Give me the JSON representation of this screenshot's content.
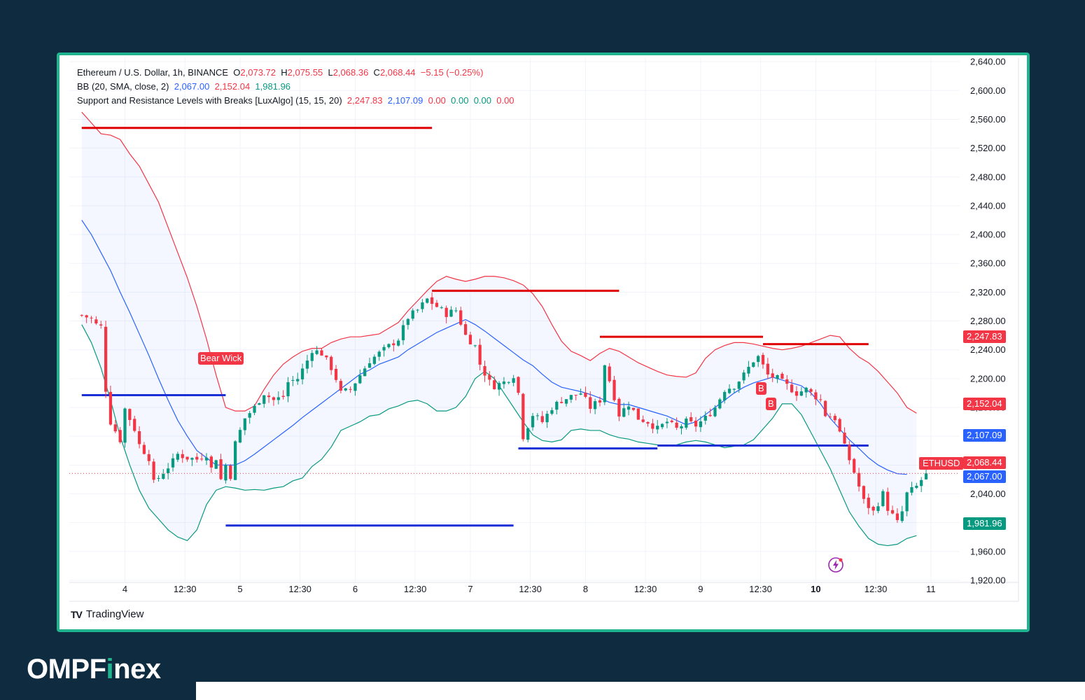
{
  "header": {
    "symbol_line": "Ethereum / U.S. Dollar, 1h, BINANCE",
    "ohlc": {
      "o_label": "O",
      "o": "2,073.72",
      "h_label": "H",
      "h": "2,075.55",
      "l_label": "L",
      "l": "2,068.36",
      "c_label": "C",
      "c": "2,068.44",
      "change": "−5.15 (−0.25%)"
    },
    "bb_title": "BB (20, SMA, close, 2)",
    "bb_values": {
      "basis": "2,067.00",
      "upper": "2,152.04",
      "lower": "1,981.96"
    },
    "sr_title": "Support and Resistance Levels with Breaks [LuxAlgo] (15, 15, 20)",
    "sr_values": {
      "res": "2,247.83",
      "sup": "2,107.09",
      "v1": "0.00",
      "v2": "0.00",
      "v3": "0.00",
      "v4": "0.00"
    }
  },
  "price_tags": {
    "res": {
      "label": "2,247.83",
      "color": "#f23645"
    },
    "bb_upper": {
      "label": "2,152.04",
      "color": "#f23645"
    },
    "sup": {
      "label": "2,107.09",
      "color": "#2962ff"
    },
    "last": {
      "label": "2,068.44",
      "color": "#f23645",
      "symbol": "ETHUSD"
    },
    "basis": {
      "label": "2,067.00",
      "color": "#2962ff"
    },
    "bb_lower": {
      "label": "1,981.96",
      "color": "#089981"
    }
  },
  "annotations": {
    "bear_wick": "Bear Wick",
    "break_1": "B",
    "break_2": "B"
  },
  "footer": {
    "tv_mark": "TV",
    "tv_name": "TradingView"
  },
  "brand": {
    "pre": "OMPF",
    "i": "i",
    "post": "nex"
  },
  "colors": {
    "up": "#089981",
    "down": "#f23645",
    "basis": "#2962ff",
    "bb_upper": "#f23645",
    "bb_lower": "#089981",
    "band_fill": "#2962ff",
    "frame": "#1fb48e",
    "background": "#0e2b40"
  },
  "chart_data": {
    "type": "candlestick",
    "y_axis": {
      "ticks": [
        1920,
        1960,
        2000,
        2040,
        2080,
        2120,
        2160,
        2200,
        2240,
        2280,
        2320,
        2360,
        2400,
        2440,
        2480,
        2520,
        2560,
        2600,
        2640
      ],
      "range": [
        1918,
        2645
      ]
    },
    "x_axis": {
      "ticks": [
        {
          "label": "4",
          "t": 9
        },
        {
          "label": "12:30",
          "t": 21.5
        },
        {
          "label": "5",
          "t": 33
        },
        {
          "label": "12:30",
          "t": 45.5
        },
        {
          "label": "6",
          "t": 57
        },
        {
          "label": "12:30",
          "t": 69.5
        },
        {
          "label": "7",
          "t": 81
        },
        {
          "label": "12:30",
          "t": 93.5
        },
        {
          "label": "8",
          "t": 105
        },
        {
          "label": "12:30",
          "t": 117.5
        },
        {
          "label": "9",
          "t": 129
        },
        {
          "label": "12:30",
          "t": 141.5
        },
        {
          "label": "10",
          "t": 153,
          "bold": true
        },
        {
          "label": "12:30",
          "t": 165.5
        },
        {
          "label": "11",
          "t": 177
        }
      ],
      "range": [
        -2.6,
        183
      ]
    },
    "close_path": [
      [
        0,
        2288
      ],
      [
        2,
        2283
      ],
      [
        3,
        2275
      ],
      [
        4,
        2272
      ],
      [
        5,
        2185
      ],
      [
        6,
        2140
      ],
      [
        8,
        2115
      ],
      [
        9,
        2158
      ],
      [
        11,
        2130
      ],
      [
        12,
        2108
      ],
      [
        14,
        2090
      ],
      [
        15,
        2055
      ],
      [
        17,
        2070
      ],
      [
        19,
        2085
      ],
      [
        20,
        2095
      ],
      [
        22,
        2090
      ],
      [
        24,
        2088
      ],
      [
        26,
        2095
      ],
      [
        27,
        2075
      ],
      [
        28,
        2090
      ],
      [
        29,
        2060
      ],
      [
        30,
        2080
      ],
      [
        31,
        2065
      ],
      [
        32,
        2110
      ],
      [
        34,
        2145
      ],
      [
        36,
        2160
      ],
      [
        38,
        2180
      ],
      [
        40,
        2170
      ],
      [
        42,
        2175
      ],
      [
        43,
        2195
      ],
      [
        45,
        2200
      ],
      [
        47,
        2225
      ],
      [
        48,
        2240
      ],
      [
        50,
        2235
      ],
      [
        52,
        2215
      ],
      [
        53,
        2200
      ],
      [
        54,
        2180
      ],
      [
        56,
        2185
      ],
      [
        58,
        2205
      ],
      [
        60,
        2225
      ],
      [
        62,
        2235
      ],
      [
        64,
        2245
      ],
      [
        66,
        2255
      ],
      [
        68,
        2285
      ],
      [
        70,
        2295
      ],
      [
        72,
        2310
      ],
      [
        74,
        2300
      ],
      [
        76,
        2290
      ],
      [
        78,
        2295
      ],
      [
        80,
        2260
      ],
      [
        82,
        2245
      ],
      [
        83,
        2220
      ],
      [
        85,
        2195
      ],
      [
        86,
        2190
      ],
      [
        88,
        2195
      ],
      [
        90,
        2205
      ],
      [
        91,
        2180
      ],
      [
        92,
        2120
      ],
      [
        94,
        2150
      ],
      [
        96,
        2140
      ],
      [
        98,
        2160
      ],
      [
        100,
        2170
      ],
      [
        102,
        2175
      ],
      [
        104,
        2180
      ],
      [
        106,
        2160
      ],
      [
        108,
        2170
      ],
      [
        109,
        2220
      ],
      [
        111,
        2175
      ],
      [
        112,
        2150
      ],
      [
        114,
        2165
      ],
      [
        116,
        2145
      ],
      [
        118,
        2140
      ],
      [
        120,
        2130
      ],
      [
        122,
        2140
      ],
      [
        124,
        2130
      ],
      [
        126,
        2140
      ],
      [
        128,
        2135
      ],
      [
        130,
        2145
      ],
      [
        132,
        2160
      ],
      [
        134,
        2185
      ],
      [
        136,
        2190
      ],
      [
        138,
        2205
      ],
      [
        140,
        2225
      ],
      [
        141,
        2230
      ],
      [
        143,
        2205
      ],
      [
        145,
        2200
      ],
      [
        147,
        2190
      ],
      [
        149,
        2180
      ],
      [
        151,
        2185
      ],
      [
        153,
        2175
      ],
      [
        154,
        2170
      ],
      [
        155,
        2150
      ],
      [
        157,
        2145
      ],
      [
        159,
        2105
      ],
      [
        161,
        2070
      ],
      [
        163,
        2030
      ],
      [
        165,
        2015
      ],
      [
        167,
        2040
      ],
      [
        168,
        2020
      ],
      [
        170,
        2000
      ],
      [
        171,
        2015
      ],
      [
        172,
        2040
      ],
      [
        174,
        2050
      ],
      [
        176,
        2068.44
      ]
    ],
    "bb_upper_path": [
      [
        0,
        2570
      ],
      [
        2,
        2555
      ],
      [
        4,
        2540
      ],
      [
        6,
        2538
      ],
      [
        8,
        2532
      ],
      [
        10,
        2512
      ],
      [
        12,
        2495
      ],
      [
        14,
        2470
      ],
      [
        16,
        2445
      ],
      [
        18,
        2410
      ],
      [
        20,
        2375
      ],
      [
        22,
        2340
      ],
      [
        24,
        2300
      ],
      [
        26,
        2255
      ],
      [
        28,
        2205
      ],
      [
        30,
        2160
      ],
      [
        32,
        2155
      ],
      [
        34,
        2155
      ],
      [
        36,
        2162
      ],
      [
        38,
        2185
      ],
      [
        40,
        2205
      ],
      [
        42,
        2220
      ],
      [
        44,
        2230
      ],
      [
        46,
        2238
      ],
      [
        48,
        2242
      ],
      [
        50,
        2242
      ],
      [
        52,
        2250
      ],
      [
        54,
        2255
      ],
      [
        56,
        2258
      ],
      [
        58,
        2258
      ],
      [
        60,
        2260
      ],
      [
        62,
        2262
      ],
      [
        64,
        2270
      ],
      [
        66,
        2278
      ],
      [
        68,
        2294
      ],
      [
        70,
        2308
      ],
      [
        72,
        2322
      ],
      [
        74,
        2335
      ],
      [
        76,
        2342
      ],
      [
        78,
        2338
      ],
      [
        80,
        2335
      ],
      [
        82,
        2338
      ],
      [
        84,
        2342
      ],
      [
        86,
        2342
      ],
      [
        88,
        2340
      ],
      [
        90,
        2336
      ],
      [
        92,
        2330
      ],
      [
        94,
        2318
      ],
      [
        96,
        2300
      ],
      [
        98,
        2275
      ],
      [
        100,
        2252
      ],
      [
        102,
        2238
      ],
      [
        104,
        2232
      ],
      [
        106,
        2225
      ],
      [
        108,
        2235
      ],
      [
        110,
        2242
      ],
      [
        112,
        2238
      ],
      [
        114,
        2230
      ],
      [
        116,
        2222
      ],
      [
        118,
        2216
      ],
      [
        120,
        2210
      ],
      [
        122,
        2205
      ],
      [
        124,
        2203
      ],
      [
        126,
        2202
      ],
      [
        128,
        2208
      ],
      [
        130,
        2228
      ],
      [
        132,
        2240
      ],
      [
        134,
        2246
      ],
      [
        136,
        2250
      ],
      [
        138,
        2250
      ],
      [
        140,
        2248
      ],
      [
        142,
        2245
      ],
      [
        144,
        2242
      ],
      [
        146,
        2240
      ],
      [
        148,
        2242
      ],
      [
        150,
        2245
      ],
      [
        152,
        2250
      ],
      [
        154,
        2255
      ],
      [
        156,
        2260
      ],
      [
        158,
        2258
      ],
      [
        160,
        2242
      ],
      [
        162,
        2230
      ],
      [
        164,
        2222
      ],
      [
        166,
        2210
      ],
      [
        168,
        2195
      ],
      [
        170,
        2180
      ],
      [
        172,
        2160
      ],
      [
        174,
        2152
      ]
    ],
    "basis_path": [
      [
        0,
        2420
      ],
      [
        2,
        2400
      ],
      [
        4,
        2375
      ],
      [
        6,
        2350
      ],
      [
        8,
        2320
      ],
      [
        10,
        2292
      ],
      [
        12,
        2262
      ],
      [
        14,
        2232
      ],
      [
        16,
        2200
      ],
      [
        18,
        2170
      ],
      [
        20,
        2142
      ],
      [
        22,
        2120
      ],
      [
        24,
        2100
      ],
      [
        26,
        2090
      ],
      [
        28,
        2080
      ],
      [
        30,
        2080
      ],
      [
        32,
        2080
      ],
      [
        34,
        2086
      ],
      [
        36,
        2095
      ],
      [
        38,
        2105
      ],
      [
        40,
        2115
      ],
      [
        42,
        2125
      ],
      [
        44,
        2135
      ],
      [
        46,
        2146
      ],
      [
        48,
        2156
      ],
      [
        50,
        2166
      ],
      [
        52,
        2176
      ],
      [
        54,
        2186
      ],
      [
        56,
        2196
      ],
      [
        58,
        2206
      ],
      [
        60,
        2212
      ],
      [
        62,
        2220
      ],
      [
        64,
        2225
      ],
      [
        66,
        2230
      ],
      [
        68,
        2240
      ],
      [
        70,
        2248
      ],
      [
        72,
        2256
      ],
      [
        74,
        2264
      ],
      [
        76,
        2270
      ],
      [
        78,
        2276
      ],
      [
        80,
        2282
      ],
      [
        82,
        2275
      ],
      [
        84,
        2266
      ],
      [
        86,
        2256
      ],
      [
        88,
        2246
      ],
      [
        90,
        2236
      ],
      [
        92,
        2226
      ],
      [
        94,
        2218
      ],
      [
        96,
        2206
      ],
      [
        98,
        2195
      ],
      [
        100,
        2188
      ],
      [
        102,
        2185
      ],
      [
        104,
        2182
      ],
      [
        106,
        2178
      ],
      [
        108,
        2173
      ],
      [
        110,
        2167
      ],
      [
        112,
        2164
      ],
      [
        114,
        2164
      ],
      [
        116,
        2160
      ],
      [
        118,
        2156
      ],
      [
        120,
        2152
      ],
      [
        122,
        2148
      ],
      [
        124,
        2142
      ],
      [
        126,
        2136
      ],
      [
        128,
        2140
      ],
      [
        130,
        2150
      ],
      [
        132,
        2160
      ],
      [
        134,
        2170
      ],
      [
        136,
        2180
      ],
      [
        138,
        2188
      ],
      [
        140,
        2194
      ],
      [
        142,
        2198
      ],
      [
        144,
        2202
      ],
      [
        146,
        2198
      ],
      [
        148,
        2194
      ],
      [
        150,
        2190
      ],
      [
        152,
        2180
      ],
      [
        154,
        2165
      ],
      [
        156,
        2145
      ],
      [
        158,
        2130
      ],
      [
        160,
        2115
      ],
      [
        162,
        2103
      ],
      [
        164,
        2090
      ],
      [
        166,
        2080
      ],
      [
        168,
        2073
      ],
      [
        170,
        2068
      ],
      [
        172,
        2067
      ]
    ],
    "bb_lower_path": [
      [
        0,
        2275
      ],
      [
        2,
        2250
      ],
      [
        4,
        2215
      ],
      [
        6,
        2170
      ],
      [
        8,
        2120
      ],
      [
        10,
        2080
      ],
      [
        12,
        2045
      ],
      [
        14,
        2020
      ],
      [
        16,
        2005
      ],
      [
        18,
        1990
      ],
      [
        20,
        1980
      ],
      [
        22,
        1975
      ],
      [
        24,
        1990
      ],
      [
        26,
        2025
      ],
      [
        28,
        2045
      ],
      [
        30,
        2050
      ],
      [
        32,
        2048
      ],
      [
        34,
        2045
      ],
      [
        36,
        2046
      ],
      [
        38,
        2045
      ],
      [
        40,
        2048
      ],
      [
        42,
        2050
      ],
      [
        44,
        2058
      ],
      [
        46,
        2062
      ],
      [
        48,
        2078
      ],
      [
        50,
        2088
      ],
      [
        52,
        2105
      ],
      [
        54,
        2128
      ],
      [
        56,
        2134
      ],
      [
        58,
        2140
      ],
      [
        60,
        2148
      ],
      [
        62,
        2150
      ],
      [
        64,
        2158
      ],
      [
        66,
        2162
      ],
      [
        68,
        2168
      ],
      [
        70,
        2170
      ],
      [
        72,
        2165
      ],
      [
        74,
        2155
      ],
      [
        76,
        2155
      ],
      [
        78,
        2160
      ],
      [
        80,
        2175
      ],
      [
        82,
        2200
      ],
      [
        84,
        2210
      ],
      [
        86,
        2200
      ],
      [
        88,
        2180
      ],
      [
        90,
        2160
      ],
      [
        92,
        2140
      ],
      [
        94,
        2122
      ],
      [
        96,
        2114
      ],
      [
        98,
        2112
      ],
      [
        100,
        2115
      ],
      [
        102,
        2128
      ],
      [
        104,
        2130
      ],
      [
        106,
        2128
      ],
      [
        108,
        2128
      ],
      [
        110,
        2122
      ],
      [
        112,
        2118
      ],
      [
        114,
        2116
      ],
      [
        116,
        2112
      ],
      [
        118,
        2110
      ],
      [
        120,
        2108
      ],
      [
        122,
        2106
      ],
      [
        124,
        2108
      ],
      [
        126,
        2112
      ],
      [
        128,
        2114
      ],
      [
        130,
        2112
      ],
      [
        132,
        2108
      ],
      [
        134,
        2104
      ],
      [
        136,
        2106
      ],
      [
        138,
        2108
      ],
      [
        140,
        2115
      ],
      [
        142,
        2130
      ],
      [
        144,
        2145
      ],
      [
        146,
        2165
      ],
      [
        148,
        2165
      ],
      [
        150,
        2150
      ],
      [
        152,
        2125
      ],
      [
        154,
        2100
      ],
      [
        156,
        2075
      ],
      [
        158,
        2045
      ],
      [
        160,
        2015
      ],
      [
        162,
        1995
      ],
      [
        164,
        1978
      ],
      [
        166,
        1970
      ],
      [
        168,
        1968
      ],
      [
        170,
        1970
      ],
      [
        172,
        1978
      ],
      [
        174,
        1982
      ]
    ],
    "sr_levels": [
      {
        "kind": "resistance",
        "price": 2548,
        "t0": 0,
        "t1": 73
      },
      {
        "kind": "resistance",
        "price": 2322,
        "t0": 73,
        "t1": 112
      },
      {
        "kind": "resistance",
        "price": 2258,
        "t0": 108,
        "t1": 142
      },
      {
        "kind": "resistance",
        "price": 2247.83,
        "t0": 142,
        "t1": 164
      },
      {
        "kind": "support",
        "price": 2177,
        "t0": 0,
        "t1": 30
      },
      {
        "kind": "support",
        "price": 1996,
        "t0": 30,
        "t1": 90
      },
      {
        "kind": "support",
        "price": 2103,
        "t0": 91,
        "t1": 120
      },
      {
        "kind": "support",
        "price": 2107.09,
        "t0": 120,
        "t1": 164
      }
    ],
    "last_price": 2068.44,
    "ylabel": "",
    "xlabel": ""
  }
}
